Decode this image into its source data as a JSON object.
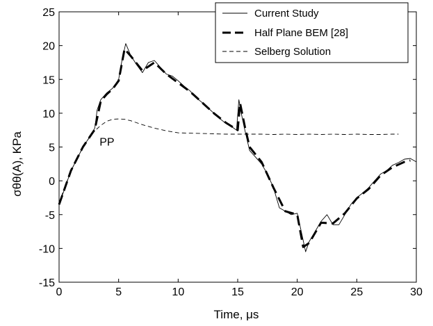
{
  "chart_data": {
    "type": "line",
    "xlabel": "Time, μs",
    "ylabel": "σθθ(A), KPa",
    "xlim": [
      0,
      30
    ],
    "ylim": [
      -15,
      25
    ],
    "xticks": [
      0,
      5,
      10,
      15,
      20,
      25,
      30
    ],
    "yticks": [
      -15,
      -10,
      -5,
      0,
      5,
      10,
      15,
      20,
      25
    ],
    "grid": false,
    "legend_position": "top-right",
    "annotations": [
      {
        "text": "PP",
        "x": 3.4,
        "y": 5.8
      }
    ],
    "series": [
      {
        "name": "Current Study",
        "style": "thin-solid",
        "color": "#000000",
        "x": [
          0,
          0.5,
          1,
          1.5,
          2,
          2.5,
          3,
          3.2,
          3.5,
          4,
          4.5,
          5,
          5.3,
          5.6,
          6,
          6.5,
          7,
          7.5,
          8,
          8.5,
          9,
          9.5,
          10,
          10.5,
          11,
          11.5,
          12,
          12.5,
          13,
          13.5,
          14,
          14.5,
          14.9,
          15.1,
          15.3,
          15.6,
          16,
          16.5,
          17,
          17.5,
          18,
          18.5,
          19,
          19.5,
          20,
          20.4,
          20.7,
          21,
          21.5,
          22,
          22.5,
          23,
          23.5,
          24,
          24.5,
          25,
          25.5,
          26,
          26.5,
          27,
          27.5,
          28,
          28.5,
          29,
          29.5,
          30
        ],
        "y": [
          -3.5,
          -1.0,
          1.5,
          3.2,
          5.0,
          6.3,
          7.8,
          10.5,
          12.0,
          13.0,
          13.7,
          15.0,
          18.0,
          20.3,
          18.6,
          17.2,
          16.0,
          17.5,
          17.8,
          16.8,
          15.8,
          15.5,
          14.8,
          14.0,
          13.3,
          12.3,
          11.6,
          10.8,
          10.0,
          9.2,
          8.5,
          8.0,
          7.5,
          12.0,
          10.0,
          7.5,
          4.5,
          3.5,
          2.5,
          1.0,
          -1.0,
          -4.0,
          -4.5,
          -5.0,
          -4.8,
          -8.0,
          -10.5,
          -9.0,
          -7.5,
          -6.0,
          -5.0,
          -6.5,
          -6.5,
          -5.0,
          -3.5,
          -2.5,
          -1.8,
          -1.0,
          0.0,
          1.0,
          1.5,
          2.3,
          2.7,
          3.2,
          3.3,
          2.8
        ]
      },
      {
        "name": "Half Plane BEM [28]",
        "style": "thick-dashed",
        "color": "#000000",
        "x": [
          0,
          1,
          2,
          3,
          3.5,
          4,
          4.5,
          5,
          5.5,
          6,
          7,
          8,
          9,
          10,
          11,
          12,
          13,
          14,
          15,
          15.2,
          15.6,
          16,
          17,
          18,
          19,
          20,
          20.5,
          21,
          22,
          23,
          24,
          25,
          26,
          27,
          28,
          29,
          29.5
        ],
        "y": [
          -3.5,
          1.5,
          5.0,
          7.6,
          11.8,
          12.8,
          13.6,
          14.8,
          19.5,
          18.5,
          16.3,
          17.5,
          15.8,
          14.5,
          13.2,
          11.6,
          10.0,
          8.6,
          7.5,
          11.5,
          8.0,
          5.0,
          2.8,
          -1.0,
          -4.5,
          -5.0,
          -9.8,
          -9.2,
          -6.2,
          -6.3,
          -4.8,
          -2.6,
          -1.2,
          0.8,
          2.0,
          2.8,
          3.0
        ]
      },
      {
        "name": "Selberg Solution",
        "style": "thin-dashed",
        "color": "#000000",
        "x": [
          0,
          0.5,
          1,
          1.5,
          2,
          2.5,
          3,
          3.5,
          4,
          4.5,
          5,
          5.5,
          6,
          6.5,
          7,
          8,
          9,
          10,
          11,
          12,
          13,
          14,
          15,
          16,
          17,
          18,
          19,
          20,
          21,
          22,
          23,
          24,
          25,
          26,
          27,
          28,
          28.5
        ],
        "y": [
          -3.3,
          -0.8,
          1.4,
          3.3,
          4.9,
          6.3,
          7.4,
          8.2,
          8.8,
          9.1,
          9.15,
          9.1,
          8.9,
          8.6,
          8.3,
          7.8,
          7.4,
          7.1,
          7.05,
          7.0,
          6.95,
          6.9,
          6.9,
          6.9,
          6.9,
          6.85,
          6.9,
          6.85,
          6.9,
          6.85,
          6.9,
          6.85,
          6.9,
          6.85,
          6.85,
          6.9,
          6.9
        ]
      }
    ]
  }
}
